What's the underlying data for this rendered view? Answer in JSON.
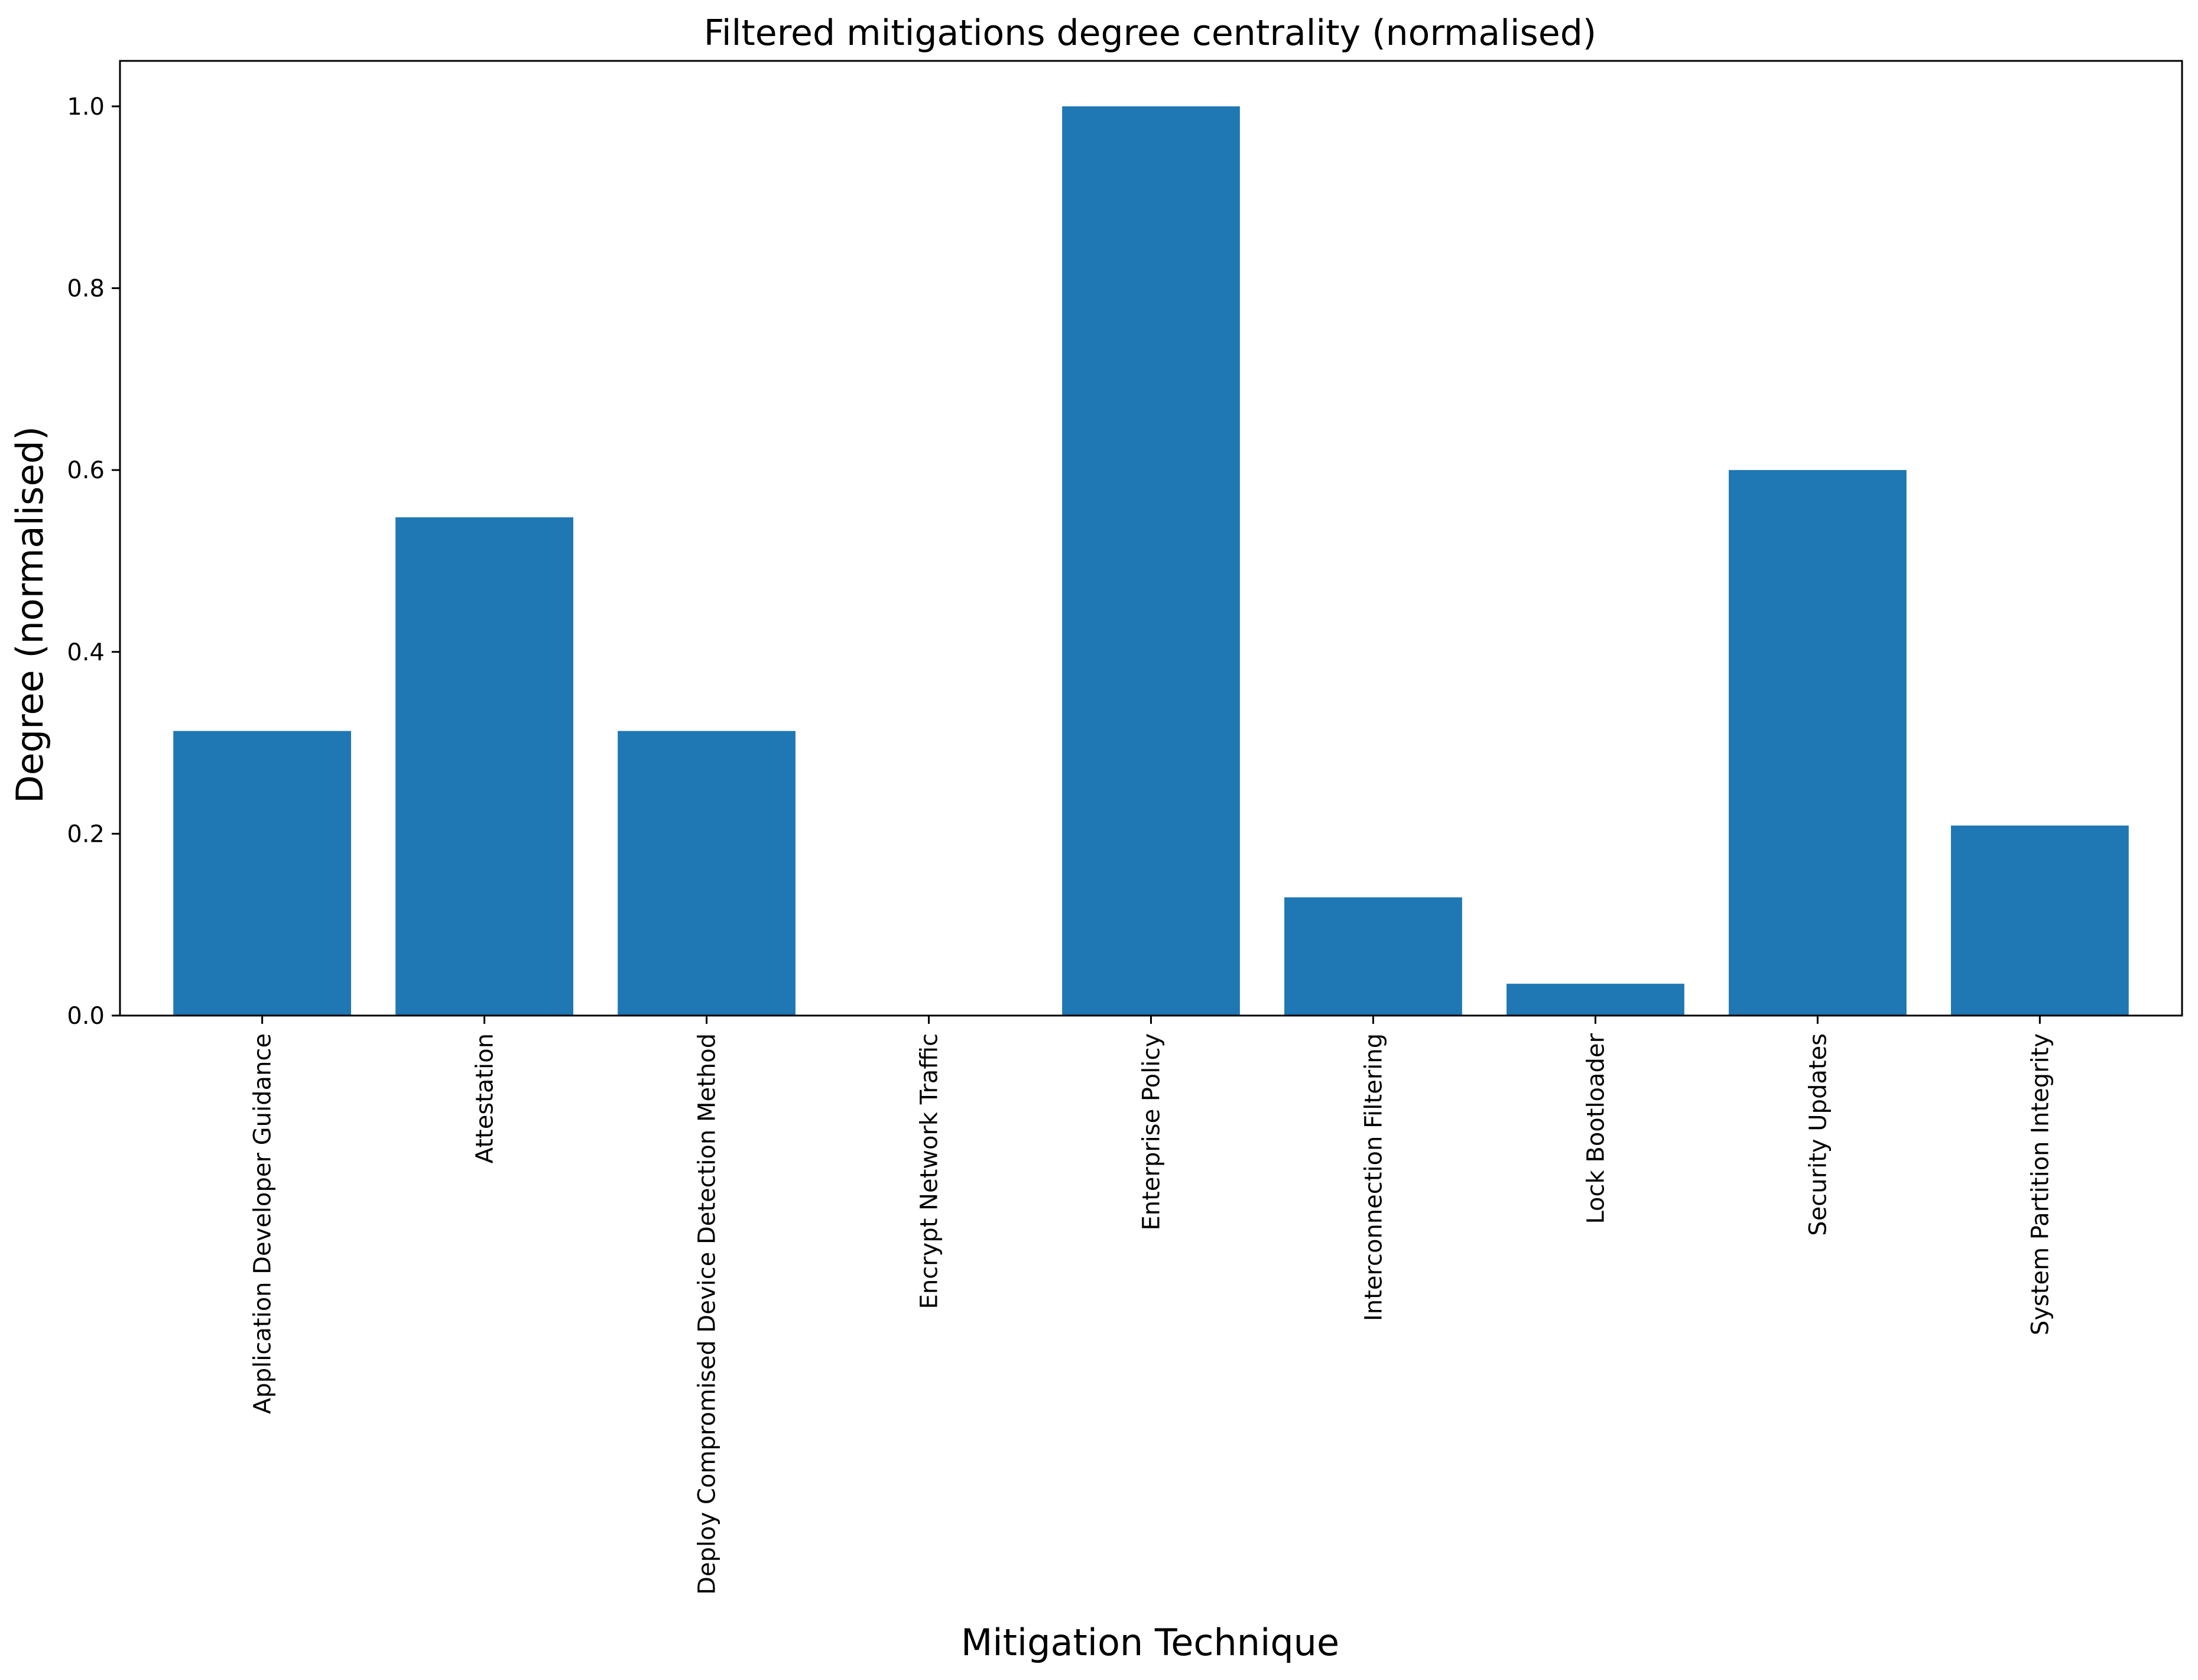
{
  "chart_data": {
    "type": "bar",
    "title": "Filtered mitigations degree centrality (normalised)",
    "xlabel": "Mitigation Technique",
    "ylabel": "Degree (normalised)",
    "categories": [
      "Application Developer Guidance",
      "Attestation",
      "Deploy Compromised Device Detection Method",
      "Encrypt Network Traffic",
      "Enterprise Policy",
      "Interconnection Filtering",
      "Lock Bootloader",
      "Security Updates",
      "System Partition Integrity"
    ],
    "values": [
      0.313,
      0.548,
      0.313,
      0.0,
      1.0,
      0.13,
      0.035,
      0.6,
      0.209
    ],
    "ylim": [
      0,
      1.05
    ],
    "yticks": [
      0.0,
      0.2,
      0.4,
      0.6,
      0.8,
      1.0
    ],
    "ytick_labels": [
      "0.0",
      "0.2",
      "0.4",
      "0.6",
      "0.8",
      "1.0"
    ],
    "bar_color": "#1f77b4",
    "grid": false,
    "legend": false
  }
}
